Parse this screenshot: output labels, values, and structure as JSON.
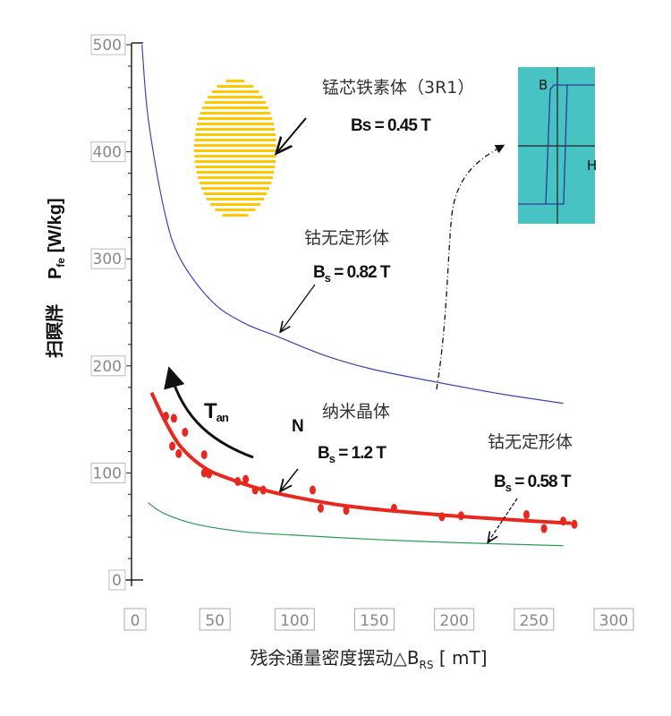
{
  "chart_data": {
    "type": "line",
    "xlabel": "残余通量密度摆动△B",
    "xlabel_sub": "RS",
    "xlabel_unit": " [ mT]",
    "ylabel_cn": "扫瞑牉",
    "ylabel": "P",
    "ylabel_sub": "fe",
    "ylabel_unit": " [W/kg]",
    "xlim": [
      0,
      300
    ],
    "ylim": [
      0,
      500
    ],
    "xticks": [
      "0",
      "50",
      "100",
      "150",
      "200",
      "250",
      "300"
    ],
    "yticks": [
      "0",
      "100",
      "200",
      "300",
      "400",
      "500"
    ],
    "grid": false,
    "series": [
      {
        "color": "#3a47b0",
        "x": [
          6,
          10,
          20,
          30,
          50,
          70,
          90,
          120,
          150,
          190,
          230,
          270
        ],
        "y": [
          500,
          430,
          345,
          300,
          260,
          240,
          228,
          210,
          197,
          185,
          174,
          165
        ]
      },
      {
        "color": "#e8281e",
        "x": [
          12,
          20,
          30,
          45,
          60,
          80,
          100,
          130,
          160,
          200,
          240,
          275
        ],
        "y": [
          175,
          150,
          125,
          105,
          95,
          85,
          78,
          70,
          65,
          60,
          56,
          53
        ]
      },
      {
        "color": "#2e9a55",
        "x": [
          10,
          20,
          40,
          70,
          100,
          150,
          200,
          270
        ],
        "y": [
          72,
          62,
          52,
          45,
          42,
          38,
          35,
          32
        ]
      }
    ],
    "scatter": {
      "color": "#e8281e",
      "x": [
        21,
        26,
        33,
        25,
        29,
        45,
        45,
        48,
        66,
        71,
        77,
        82,
        113,
        118,
        134,
        164,
        194,
        206,
        247,
        258,
        270,
        277
      ],
      "y": [
        153,
        151,
        138,
        125,
        118,
        117,
        100,
        99,
        92,
        94,
        84,
        84,
        84,
        67,
        65,
        67,
        59,
        60,
        61,
        48,
        55,
        52
      ]
    },
    "annotations": {
      "ferrite_name": "锰芯铁素体（3R1）",
      "ferrite_bs": "Bs = 0.45 T",
      "co_amorph_name": "钴无定形体",
      "co_amorph_bs_label": "B",
      "co_amorph_bs_sub": "s",
      "co_amorph_bs_value": " = 0.82 T",
      "tan_label": "T",
      "tan_sub": "an",
      "n_label": "N",
      "nano_name": "纳米晶体",
      "nano_bs_label": "B",
      "nano_bs_sub": "s",
      "nano_bs_value": " = 1.2 T",
      "co_amorph2_name": "钴无定形体",
      "co_amorph2_bs_label": "B",
      "co_amorph2_bs_sub": "s",
      "co_amorph2_bs_value": " = 0.58 T",
      "inset_b": "B",
      "inset_h": "H"
    },
    "colors": {
      "ferrite_fill": "#ffc800",
      "inset_bg": "#47c3c3",
      "inset_loop": "#2d3a9a"
    }
  }
}
